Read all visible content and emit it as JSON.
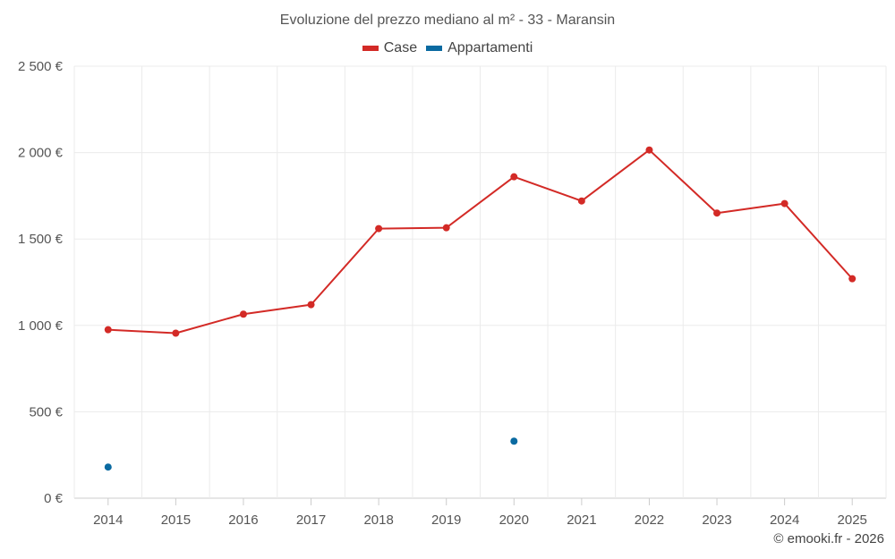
{
  "title": "Evoluzione del prezzo mediano al m² - 33 - Maransin",
  "credit": "© emooki.fr - 2026",
  "colors": {
    "case": "#d32a26",
    "appartamenti": "#0a6aa1",
    "grid": "#ebebeb",
    "axis": "#cccccc"
  },
  "legend": [
    {
      "label": "Case",
      "color": "#d32a26"
    },
    {
      "label": "Appartamenti",
      "color": "#0a6aa1"
    }
  ],
  "chart_data": {
    "type": "line",
    "title": "Evoluzione del prezzo mediano al m² - 33 - Maransin",
    "xlabel": "",
    "ylabel": "",
    "categories": [
      "2014",
      "2015",
      "2016",
      "2017",
      "2018",
      "2019",
      "2020",
      "2021",
      "2022",
      "2023",
      "2024",
      "2025"
    ],
    "ylim": [
      0,
      2500
    ],
    "yticks": [
      0,
      500,
      1000,
      1500,
      2000,
      2500
    ],
    "ytick_labels": [
      "0 €",
      "500 €",
      "1 000 €",
      "1 500 €",
      "2 000 €",
      "2 500 €"
    ],
    "grid": true,
    "legend_position": "top",
    "series": [
      {
        "name": "Case",
        "color": "#d32a26",
        "values": [
          975,
          955,
          1065,
          1120,
          1560,
          1565,
          1860,
          1720,
          2015,
          1650,
          1705,
          1270
        ]
      },
      {
        "name": "Appartamenti",
        "color": "#0a6aa1",
        "values": [
          180,
          null,
          null,
          null,
          null,
          null,
          330,
          null,
          null,
          null,
          null,
          null
        ]
      }
    ]
  }
}
